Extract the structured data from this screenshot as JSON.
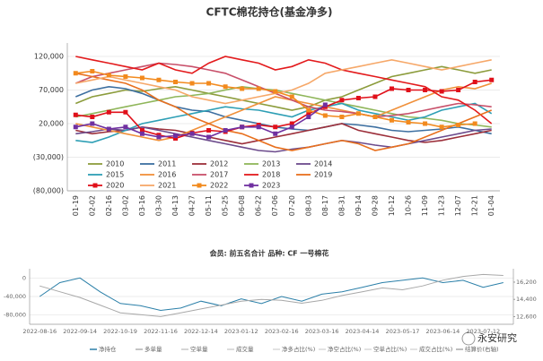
{
  "chart_data": [
    {
      "type": "line",
      "title": "CFTC棉花持仓(基金净多)",
      "categories": [
        "01-19",
        "02-02",
        "02-16",
        "03-02",
        "03-16",
        "03-30",
        "04-13",
        "04-27",
        "05-11",
        "05-25",
        "06-08",
        "06-22",
        "07-06",
        "07-20",
        "08-03",
        "08-17",
        "08-31",
        "09-14",
        "09-28",
        "10-12",
        "10-26",
        "11-09",
        "11-23",
        "12-07",
        "12-21",
        "01-04"
      ],
      "ylim": [
        -80000,
        140000
      ],
      "yticks": [
        {
          "value": 120000,
          "label": "120,000"
        },
        {
          "value": 70000,
          "label": "70,000"
        },
        {
          "value": 20000,
          "label": "20,000"
        },
        {
          "value": -30000,
          "label": "(30,000)"
        },
        {
          "value": -80000,
          "label": "(80,000)"
        }
      ],
      "grid": true,
      "legend": "lower left",
      "series": [
        {
          "name": "2010",
          "color": "#8c9c3c",
          "values": [
            50000,
            60000,
            65000,
            70000,
            68000,
            72000,
            75000,
            70000,
            65000,
            60000,
            55000,
            50000,
            45000,
            40000,
            45000,
            55000,
            60000,
            70000,
            80000,
            90000,
            95000,
            100000,
            105000,
            100000,
            95000,
            100000
          ]
        },
        {
          "name": "2011",
          "color": "#3d6fa0",
          "values": [
            60000,
            70000,
            75000,
            72000,
            65000,
            55000,
            45000,
            40000,
            38000,
            30000,
            25000,
            20000,
            15000,
            12000,
            10000,
            15000,
            20000,
            18000,
            15000,
            10000,
            8000,
            10000,
            12000,
            15000,
            10000,
            5000
          ]
        },
        {
          "name": "2012",
          "color": "#9c2f3a",
          "values": [
            10000,
            5000,
            8000,
            10000,
            15000,
            12000,
            10000,
            5000,
            0,
            -5000,
            -10000,
            -5000,
            0,
            5000,
            10000,
            15000,
            20000,
            10000,
            5000,
            0,
            -5000,
            -8000,
            -5000,
            0,
            5000,
            10000
          ]
        },
        {
          "name": "2013",
          "color": "#8fb65a",
          "values": [
            30000,
            35000,
            40000,
            45000,
            50000,
            55000,
            60000,
            62000,
            65000,
            70000,
            75000,
            72000,
            70000,
            65000,
            60000,
            55000,
            50000,
            45000,
            40000,
            35000,
            30000,
            28000,
            25000,
            20000,
            18000,
            15000
          ]
        },
        {
          "name": "2014",
          "color": "#6c4b8c",
          "values": [
            5000,
            8000,
            12000,
            10000,
            15000,
            10000,
            5000,
            0,
            -5000,
            -10000,
            -15000,
            -20000,
            -22000,
            -18000,
            -15000,
            -10000,
            -5000,
            -8000,
            -12000,
            -15000,
            -10000,
            -5000,
            0,
            5000,
            10000,
            12000
          ]
        },
        {
          "name": "2015",
          "color": "#2e9fb5",
          "values": [
            -5000,
            -8000,
            0,
            10000,
            20000,
            25000,
            30000,
            35000,
            40000,
            45000,
            42000,
            40000,
            35000,
            30000,
            40000,
            45000,
            50000,
            40000,
            35000,
            30000,
            25000,
            30000,
            40000,
            45000,
            50000,
            35000
          ]
        },
        {
          "name": "2016",
          "color": "#f0903a",
          "values": [
            20000,
            15000,
            10000,
            5000,
            0,
            -5000,
            0,
            10000,
            20000,
            30000,
            40000,
            50000,
            60000,
            55000,
            50000,
            45000,
            40000,
            35000,
            30000,
            40000,
            50000,
            60000,
            70000,
            75000,
            72000,
            80000
          ]
        },
        {
          "name": "2017",
          "color": "#c8506a",
          "values": [
            80000,
            90000,
            95000,
            100000,
            105000,
            110000,
            108000,
            105000,
            100000,
            95000,
            85000,
            75000,
            65000,
            55000,
            45000,
            40000,
            38000,
            35000,
            30000,
            32000,
            35000,
            40000,
            45000,
            50000,
            48000,
            45000
          ]
        },
        {
          "name": "2018",
          "color": "#e31a1c",
          "values": [
            120000,
            115000,
            110000,
            105000,
            100000,
            110000,
            100000,
            95000,
            110000,
            120000,
            115000,
            110000,
            100000,
            105000,
            115000,
            110000,
            100000,
            95000,
            90000,
            85000,
            80000,
            75000,
            60000,
            55000,
            40000,
            20000
          ]
        },
        {
          "name": "2019",
          "color": "#e8701e",
          "values": [
            95000,
            90000,
            85000,
            80000,
            70000,
            55000,
            45000,
            30000,
            20000,
            10000,
            5000,
            -5000,
            -15000,
            -20000,
            -15000,
            -10000,
            -5000,
            -10000,
            -20000,
            -15000,
            -10000,
            0,
            10000,
            20000,
            30000,
            40000
          ]
        },
        {
          "name": "2020",
          "color": "#e0101a",
          "markers": true,
          "values": [
            33000,
            30000,
            37000,
            37000,
            10000,
            3000,
            -2000,
            6000,
            10000,
            8000,
            15000,
            18000,
            15000,
            20000,
            35000,
            45000,
            55000,
            58000,
            60000,
            72000,
            70000,
            70000,
            68000,
            70000,
            82000,
            85000
          ]
        },
        {
          "name": "2021",
          "color": "#f6a869",
          "values": [
            80000,
            85000,
            90000,
            85000,
            80000,
            75000,
            70000,
            60000,
            55000,
            50000,
            55000,
            60000,
            65000,
            70000,
            80000,
            95000,
            100000,
            105000,
            110000,
            115000,
            110000,
            105000,
            100000,
            105000,
            110000,
            115000
          ]
        },
        {
          "name": "2022",
          "color": "#f28a1e",
          "markers": true,
          "values": [
            95000,
            98000,
            92000,
            90000,
            88000,
            85000,
            82000,
            80000,
            80000,
            75000,
            72000,
            72000,
            68000,
            60000,
            40000,
            32000,
            30000,
            35000,
            30000,
            25000,
            22000,
            20000,
            15000,
            18000,
            20000,
            null
          ]
        },
        {
          "name": "2023",
          "color": "#7030a0",
          "markers": true,
          "values": [
            15000,
            20000,
            12000,
            15000,
            5000,
            0,
            2000,
            5000,
            0,
            10000,
            15000,
            15000,
            5000,
            15000,
            30000,
            48000,
            null,
            null,
            null,
            null,
            null,
            null,
            null,
            null,
            null,
            null
          ]
        }
      ]
    },
    {
      "type": "line",
      "title": "会员:  前五名合计  品种:  CF  一号棉花",
      "categories": [
        "2022-08-16",
        null,
        "2022-09-14",
        null,
        "2022-10-19",
        null,
        "2022-11-16",
        null,
        "2022-12-14",
        null,
        "2023-01-12",
        null,
        "2023-02-16",
        null,
        "2023-03-16",
        null,
        "2023-04-14",
        null,
        "2023-05-17",
        null,
        "2023-06-14",
        null,
        "2023-07-12",
        null
      ],
      "ylim": [
        -100000,
        20000
      ],
      "yticks": [
        0,
        {
          "value": -40000,
          "label": "-40,000"
        },
        {
          "value": -80000,
          "label": "-80,000"
        }
      ],
      "y2lim": [
        11800,
        17600
      ],
      "y2ticks": [
        {
          "value": 16200,
          "label": "16,200"
        },
        {
          "value": 14400,
          "label": "14,400"
        },
        {
          "value": 12600,
          "label": "12,600"
        }
      ],
      "grid": true,
      "series": [
        {
          "name": "净持仓",
          "color": "#2a7fa8",
          "values": [
            -40000,
            -10000,
            0,
            -30000,
            -55000,
            -60000,
            -70000,
            -65000,
            -50000,
            -60000,
            -45000,
            -55000,
            -40000,
            -50000,
            -35000,
            -30000,
            -20000,
            -10000,
            -5000,
            0,
            -10000,
            -5000,
            -20000,
            -10000
          ]
        },
        {
          "name": "结算价(右轴)",
          "color": "#a8a8a8",
          "axis": "y2",
          "values": [
            15800,
            15200,
            14600,
            13800,
            13000,
            12800,
            12600,
            13000,
            13400,
            13800,
            14200,
            14400,
            14300,
            14000,
            14300,
            14800,
            15200,
            15600,
            15400,
            15800,
            16400,
            16800,
            17000,
            16900
          ]
        }
      ],
      "legend_extra": [
        {
          "label": "多单量",
          "color": "#b0b0b0"
        },
        {
          "label": "空单量",
          "color": "#c8c8c8"
        },
        {
          "label": "成交量",
          "color": "#d0d0d0"
        },
        {
          "label": "净多占比(%)",
          "color": "#d8d8d8"
        },
        {
          "label": "净空占比(%)",
          "color": "#d8d8d8"
        },
        {
          "label": "空单占比(%)",
          "color": "#d8d8d8"
        },
        {
          "label": "成交占比(%)",
          "color": "#d8d8d8"
        }
      ],
      "watermark": "永安研究"
    }
  ]
}
